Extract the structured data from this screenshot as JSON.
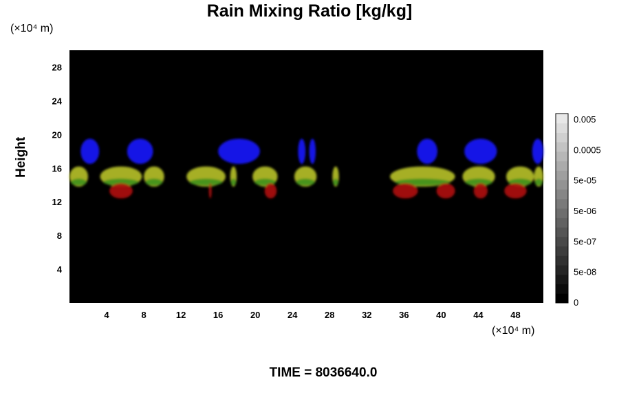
{
  "chart_data": {
    "type": "heatmap",
    "title": "Rain Mixing Ratio [kg/kg]",
    "ylabel": "Height",
    "y_unit_label": "(×10⁴ m)",
    "x_unit_label": "(×10⁴ m)",
    "time_label": "TIME = 8036640.0",
    "x_ticks": [
      4,
      8,
      12,
      16,
      20,
      24,
      28,
      32,
      36,
      40,
      44,
      48
    ],
    "y_ticks": [
      4,
      8,
      12,
      16,
      20,
      24,
      28
    ],
    "xlim": [
      0,
      51
    ],
    "ylim": [
      0,
      30
    ],
    "background_color": "#000000",
    "colorbar": {
      "tick_labels": [
        "0",
        "5e-08",
        "5e-07",
        "5e-06",
        "5e-05",
        "0.0005",
        "0.005"
      ],
      "levels": 20
    },
    "colors": {
      "blue": "#1a1aff",
      "green": "#2a8a1a",
      "yellow": "#b8c22a",
      "red": "#b01010"
    },
    "layers": [
      {
        "name": "",
        "color": "#1a1aff",
        "y_range": [
          16.5,
          19.5
        ],
        "blobs": [
          [
            1.2,
            3.2
          ],
          [
            6.2,
            9.0
          ],
          [
            16.0,
            20.5
          ],
          [
            24.6,
            25.4
          ],
          [
            25.8,
            26.5
          ],
          [
            37.4,
            39.6
          ],
          [
            42.5,
            46.0
          ],
          [
            49.8,
            51.0
          ]
        ]
      },
      {
        "name": "",
        "color": "#b8c22a",
        "y_range": [
          13.8,
          16.2
        ],
        "blobs": [
          [
            0.0,
            2.0
          ],
          [
            3.3,
            7.8
          ],
          [
            8.0,
            10.2
          ],
          [
            12.6,
            16.8
          ],
          [
            17.3,
            18.0
          ],
          [
            19.7,
            22.4
          ],
          [
            24.2,
            26.6
          ],
          [
            28.3,
            29.0
          ],
          [
            34.5,
            41.5
          ],
          [
            42.3,
            45.8
          ],
          [
            47.0,
            50.0
          ],
          [
            50.0,
            51.0
          ]
        ]
      },
      {
        "name": "",
        "color": "#b01010",
        "y_range": [
          12.4,
          14.2
        ],
        "blobs": [
          [
            4.3,
            6.8
          ],
          [
            15.0,
            15.3
          ],
          [
            21.0,
            22.3
          ],
          [
            34.8,
            37.5
          ],
          [
            39.5,
            41.5
          ],
          [
            43.5,
            45.0
          ],
          [
            46.8,
            49.2
          ]
        ]
      }
    ]
  }
}
